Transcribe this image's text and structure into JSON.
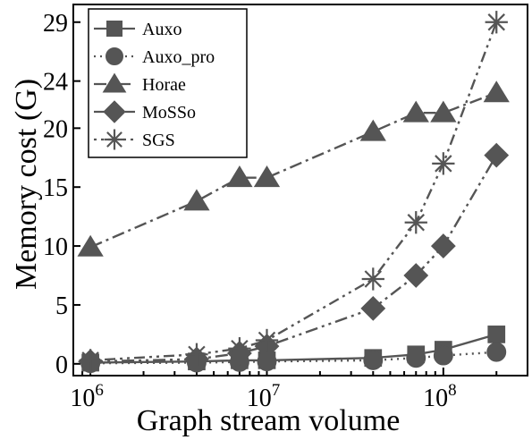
{
  "chart_data": {
    "type": "line",
    "xlabel": "Graph stream volume",
    "ylabel": "Memory cost (G)",
    "x_scale": "log",
    "xlim": [
      800000,
      300000000
    ],
    "ylim": [
      -1,
      30.5
    ],
    "x_ticks": [
      {
        "value": 1000000,
        "base": "10",
        "exp": "6"
      },
      {
        "value": 10000000,
        "base": "10",
        "exp": "7"
      },
      {
        "value": 100000000,
        "base": "10",
        "exp": "8"
      }
    ],
    "y_ticks": [
      {
        "value": 0,
        "label": "0"
      },
      {
        "value": 5,
        "label": "5"
      },
      {
        "value": 10,
        "label": "10"
      },
      {
        "value": 15,
        "label": "15"
      },
      {
        "value": 20,
        "label": "20"
      },
      {
        "value": 24,
        "label": "24"
      },
      {
        "value": 29,
        "label": "29"
      }
    ],
    "grid": false,
    "legend_position": "top-left",
    "series": [
      {
        "name": "Auxo",
        "marker": "square",
        "dash": "solid",
        "color": "#555555",
        "x": [
          1000000,
          4000000,
          7000000,
          10000000,
          40000000,
          70000000,
          100000000,
          200000000
        ],
        "y": [
          0.1,
          0.2,
          0.3,
          0.3,
          0.5,
          0.8,
          1.2,
          2.5
        ]
      },
      {
        "name": "Auxo_pro",
        "marker": "circle",
        "dash": "dot",
        "color": "#555555",
        "x": [
          1000000,
          4000000,
          7000000,
          10000000,
          40000000,
          70000000,
          100000000,
          200000000
        ],
        "y": [
          0.05,
          0.1,
          0.15,
          0.2,
          0.3,
          0.5,
          0.7,
          1.0
        ]
      },
      {
        "name": "Horae",
        "marker": "triangle",
        "dash": "dashdot",
        "color": "#555555",
        "x": [
          1000000,
          4000000,
          7000000,
          10000000,
          40000000,
          70000000,
          100000000,
          200000000
        ],
        "y": [
          9.9,
          13.8,
          15.8,
          15.8,
          19.7,
          21.3,
          21.3,
          23.0
        ]
      },
      {
        "name": "MoSSo",
        "marker": "diamond",
        "dash": "dashdotdot",
        "color": "#555555",
        "x": [
          1000000,
          4000000,
          7000000,
          10000000,
          40000000,
          70000000,
          100000000,
          200000000
        ],
        "y": [
          0.2,
          0.4,
          0.9,
          1.5,
          4.7,
          7.5,
          10.0,
          17.7
        ]
      },
      {
        "name": "SGS",
        "marker": "asterisk",
        "dash": "dotdash",
        "color": "#555555",
        "x": [
          1000000,
          4000000,
          7000000,
          10000000,
          40000000,
          70000000,
          100000000,
          200000000
        ],
        "y": [
          0.3,
          0.8,
          1.3,
          2.0,
          7.2,
          12.0,
          17.0,
          29.0
        ]
      }
    ]
  }
}
